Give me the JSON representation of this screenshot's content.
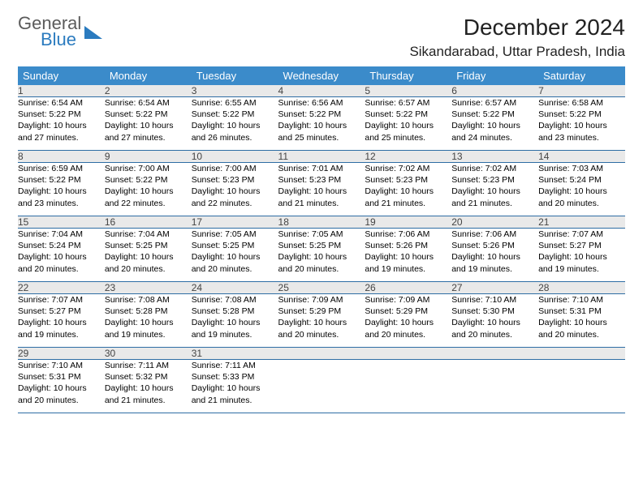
{
  "logo": {
    "line1": "General",
    "line2": "Blue"
  },
  "header": {
    "month_title": "December 2024",
    "location": "Sikandarabad, Uttar Pradesh, India"
  },
  "colors": {
    "header_bg": "#3b8bca",
    "header_text": "#ffffff",
    "daynum_bg": "#e9e9e9",
    "row_border": "#2e6da4",
    "logo_blue": "#2b7bbf"
  },
  "day_headers": [
    "Sunday",
    "Monday",
    "Tuesday",
    "Wednesday",
    "Thursday",
    "Friday",
    "Saturday"
  ],
  "weeks": [
    [
      {
        "n": "1",
        "sunrise": "Sunrise: 6:54 AM",
        "sunset": "Sunset: 5:22 PM",
        "day1": "Daylight: 10 hours",
        "day2": "and 27 minutes."
      },
      {
        "n": "2",
        "sunrise": "Sunrise: 6:54 AM",
        "sunset": "Sunset: 5:22 PM",
        "day1": "Daylight: 10 hours",
        "day2": "and 27 minutes."
      },
      {
        "n": "3",
        "sunrise": "Sunrise: 6:55 AM",
        "sunset": "Sunset: 5:22 PM",
        "day1": "Daylight: 10 hours",
        "day2": "and 26 minutes."
      },
      {
        "n": "4",
        "sunrise": "Sunrise: 6:56 AM",
        "sunset": "Sunset: 5:22 PM",
        "day1": "Daylight: 10 hours",
        "day2": "and 25 minutes."
      },
      {
        "n": "5",
        "sunrise": "Sunrise: 6:57 AM",
        "sunset": "Sunset: 5:22 PM",
        "day1": "Daylight: 10 hours",
        "day2": "and 25 minutes."
      },
      {
        "n": "6",
        "sunrise": "Sunrise: 6:57 AM",
        "sunset": "Sunset: 5:22 PM",
        "day1": "Daylight: 10 hours",
        "day2": "and 24 minutes."
      },
      {
        "n": "7",
        "sunrise": "Sunrise: 6:58 AM",
        "sunset": "Sunset: 5:22 PM",
        "day1": "Daylight: 10 hours",
        "day2": "and 23 minutes."
      }
    ],
    [
      {
        "n": "8",
        "sunrise": "Sunrise: 6:59 AM",
        "sunset": "Sunset: 5:22 PM",
        "day1": "Daylight: 10 hours",
        "day2": "and 23 minutes."
      },
      {
        "n": "9",
        "sunrise": "Sunrise: 7:00 AM",
        "sunset": "Sunset: 5:22 PM",
        "day1": "Daylight: 10 hours",
        "day2": "and 22 minutes."
      },
      {
        "n": "10",
        "sunrise": "Sunrise: 7:00 AM",
        "sunset": "Sunset: 5:23 PM",
        "day1": "Daylight: 10 hours",
        "day2": "and 22 minutes."
      },
      {
        "n": "11",
        "sunrise": "Sunrise: 7:01 AM",
        "sunset": "Sunset: 5:23 PM",
        "day1": "Daylight: 10 hours",
        "day2": "and 21 minutes."
      },
      {
        "n": "12",
        "sunrise": "Sunrise: 7:02 AM",
        "sunset": "Sunset: 5:23 PM",
        "day1": "Daylight: 10 hours",
        "day2": "and 21 minutes."
      },
      {
        "n": "13",
        "sunrise": "Sunrise: 7:02 AM",
        "sunset": "Sunset: 5:23 PM",
        "day1": "Daylight: 10 hours",
        "day2": "and 21 minutes."
      },
      {
        "n": "14",
        "sunrise": "Sunrise: 7:03 AM",
        "sunset": "Sunset: 5:24 PM",
        "day1": "Daylight: 10 hours",
        "day2": "and 20 minutes."
      }
    ],
    [
      {
        "n": "15",
        "sunrise": "Sunrise: 7:04 AM",
        "sunset": "Sunset: 5:24 PM",
        "day1": "Daylight: 10 hours",
        "day2": "and 20 minutes."
      },
      {
        "n": "16",
        "sunrise": "Sunrise: 7:04 AM",
        "sunset": "Sunset: 5:25 PM",
        "day1": "Daylight: 10 hours",
        "day2": "and 20 minutes."
      },
      {
        "n": "17",
        "sunrise": "Sunrise: 7:05 AM",
        "sunset": "Sunset: 5:25 PM",
        "day1": "Daylight: 10 hours",
        "day2": "and 20 minutes."
      },
      {
        "n": "18",
        "sunrise": "Sunrise: 7:05 AM",
        "sunset": "Sunset: 5:25 PM",
        "day1": "Daylight: 10 hours",
        "day2": "and 20 minutes."
      },
      {
        "n": "19",
        "sunrise": "Sunrise: 7:06 AM",
        "sunset": "Sunset: 5:26 PM",
        "day1": "Daylight: 10 hours",
        "day2": "and 19 minutes."
      },
      {
        "n": "20",
        "sunrise": "Sunrise: 7:06 AM",
        "sunset": "Sunset: 5:26 PM",
        "day1": "Daylight: 10 hours",
        "day2": "and 19 minutes."
      },
      {
        "n": "21",
        "sunrise": "Sunrise: 7:07 AM",
        "sunset": "Sunset: 5:27 PM",
        "day1": "Daylight: 10 hours",
        "day2": "and 19 minutes."
      }
    ],
    [
      {
        "n": "22",
        "sunrise": "Sunrise: 7:07 AM",
        "sunset": "Sunset: 5:27 PM",
        "day1": "Daylight: 10 hours",
        "day2": "and 19 minutes."
      },
      {
        "n": "23",
        "sunrise": "Sunrise: 7:08 AM",
        "sunset": "Sunset: 5:28 PM",
        "day1": "Daylight: 10 hours",
        "day2": "and 19 minutes."
      },
      {
        "n": "24",
        "sunrise": "Sunrise: 7:08 AM",
        "sunset": "Sunset: 5:28 PM",
        "day1": "Daylight: 10 hours",
        "day2": "and 19 minutes."
      },
      {
        "n": "25",
        "sunrise": "Sunrise: 7:09 AM",
        "sunset": "Sunset: 5:29 PM",
        "day1": "Daylight: 10 hours",
        "day2": "and 20 minutes."
      },
      {
        "n": "26",
        "sunrise": "Sunrise: 7:09 AM",
        "sunset": "Sunset: 5:29 PM",
        "day1": "Daylight: 10 hours",
        "day2": "and 20 minutes."
      },
      {
        "n": "27",
        "sunrise": "Sunrise: 7:10 AM",
        "sunset": "Sunset: 5:30 PM",
        "day1": "Daylight: 10 hours",
        "day2": "and 20 minutes."
      },
      {
        "n": "28",
        "sunrise": "Sunrise: 7:10 AM",
        "sunset": "Sunset: 5:31 PM",
        "day1": "Daylight: 10 hours",
        "day2": "and 20 minutes."
      }
    ],
    [
      {
        "n": "29",
        "sunrise": "Sunrise: 7:10 AM",
        "sunset": "Sunset: 5:31 PM",
        "day1": "Daylight: 10 hours",
        "day2": "and 20 minutes."
      },
      {
        "n": "30",
        "sunrise": "Sunrise: 7:11 AM",
        "sunset": "Sunset: 5:32 PM",
        "day1": "Daylight: 10 hours",
        "day2": "and 21 minutes."
      },
      {
        "n": "31",
        "sunrise": "Sunrise: 7:11 AM",
        "sunset": "Sunset: 5:33 PM",
        "day1": "Daylight: 10 hours",
        "day2": "and 21 minutes."
      },
      null,
      null,
      null,
      null
    ]
  ]
}
